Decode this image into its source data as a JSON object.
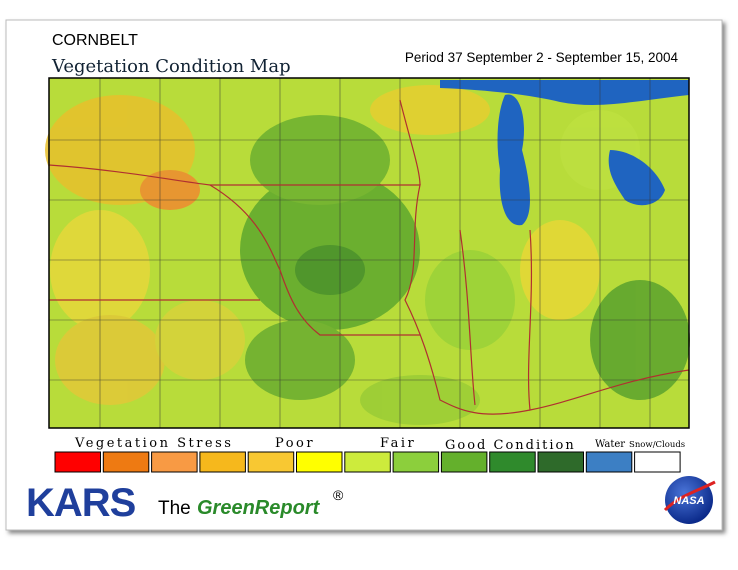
{
  "header": {
    "title": "CORNBELT",
    "subtitle": "Vegetation Condition Map",
    "period": "Period 37  September 2 - September 15, 2004"
  },
  "legend": {
    "labels": [
      "Vegetation Stress",
      "Poor",
      "Fair",
      "Good Condition",
      "Water",
      "Snow/Clouds"
    ],
    "swatches": [
      "#ff0000",
      "#ee7a12",
      "#f89a44",
      "#f6b81c",
      "#f8c832",
      "#ffff00",
      "#cdeb3c",
      "#8ccf3c",
      "#64b02c",
      "#2f8a2c",
      "#2e6a2a",
      "#3c7fc4",
      "#ffffff"
    ]
  },
  "footer": {
    "logo": "KARS",
    "the": "The",
    "brand": "GreenReport",
    "mark": "®",
    "agency": "NASA"
  }
}
